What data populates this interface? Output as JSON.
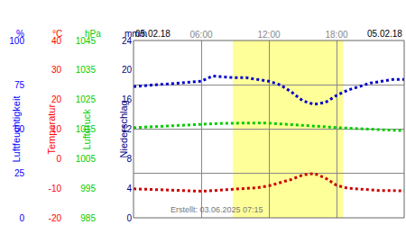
{
  "chart_data": {
    "type": "line",
    "x": [
      0,
      1,
      2,
      3,
      4,
      5,
      6,
      7,
      8,
      9,
      10,
      11,
      12,
      13,
      14,
      15,
      16,
      17,
      18,
      19,
      20,
      21,
      22,
      23,
      24
    ],
    "xlim": [
      0,
      24
    ],
    "xticks": [
      {
        "value": 6,
        "label": "06:00"
      },
      {
        "value": 12,
        "label": "12:00"
      },
      {
        "value": 18,
        "label": "18:00"
      }
    ],
    "dates": [
      "05.02.18",
      "05.02.18"
    ],
    "created": "Erstellt: 03.06.2025 07:15",
    "daylight": [
      8.8,
      18.6
    ],
    "grid": true,
    "axes": [
      {
        "title": "Luftfeuchtigkeit",
        "unit": "%",
        "color": "#0000ff",
        "ylim": [
          0,
          100
        ],
        "yticks": [
          0,
          25,
          50,
          75,
          100
        ]
      },
      {
        "title": "Temperatur",
        "unit": "°C",
        "color": "#ff0000",
        "ylim": [
          -20,
          40
        ],
        "yticks": [
          -20,
          -10,
          0,
          10,
          20,
          30,
          40
        ]
      },
      {
        "title": "Luftdruck",
        "unit": "hPa",
        "color": "#00cc00",
        "ylim": [
          985,
          1045
        ],
        "yticks": [
          985,
          995,
          1005,
          1015,
          1025,
          1035,
          1045
        ]
      },
      {
        "title": "Niederschlag",
        "unit": "mm/h",
        "color": "#000080",
        "ylim": [
          0,
          24
        ],
        "yticks": [
          0,
          4,
          8,
          12,
          16,
          20,
          24
        ]
      }
    ],
    "series": [
      {
        "axis": "Luftfeuchtigkeit",
        "color": "#0000cc",
        "values": [
          74,
          74.5,
          75,
          75.5,
          76,
          76.5,
          77,
          80,
          79.5,
          79,
          79,
          78,
          77,
          75,
          71,
          66,
          64,
          65,
          69,
          72,
          74,
          76,
          77,
          78,
          78
        ]
      },
      {
        "axis": "Temperatur",
        "color": "#cc0000",
        "values": [
          -10.2,
          -10.3,
          -10.4,
          -10.6,
          -10.7,
          -10.8,
          -11,
          -10.8,
          -10.6,
          -10.4,
          -10.2,
          -9.8,
          -9.2,
          -8.2,
          -7,
          -5.5,
          -5,
          -6.5,
          -9,
          -10,
          -10.3,
          -10.6,
          -10.8,
          -10.8,
          -10.9
        ]
      },
      {
        "axis": "Luftdruck",
        "color": "#00cc00",
        "values": [
          1015.5,
          1015.7,
          1015.9,
          1016.1,
          1016.3,
          1016.5,
          1016.6,
          1016.8,
          1017,
          1017,
          1017.1,
          1017.1,
          1017,
          1016.8,
          1016.5,
          1016.2,
          1016,
          1015.8,
          1015.5,
          1015.4,
          1015.2,
          1015,
          1014.8,
          1014.6,
          1014.5
        ]
      }
    ]
  }
}
